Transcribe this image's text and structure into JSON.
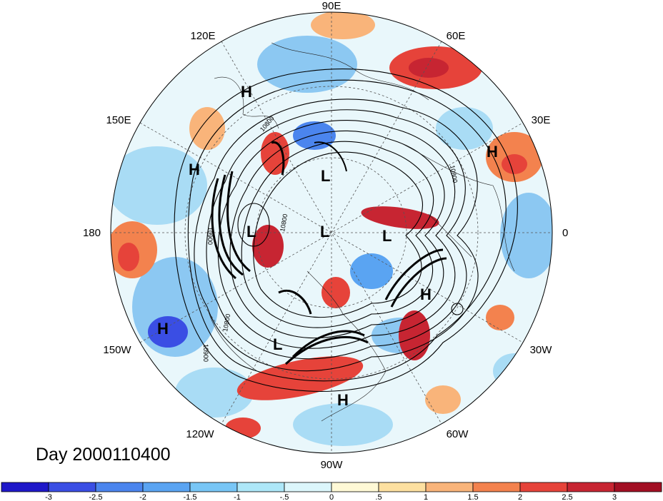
{
  "map": {
    "projection": "north-polar-stereographic",
    "longitude_labels": [
      {
        "text": "90E"
      },
      {
        "text": "60E"
      },
      {
        "text": "30E"
      },
      {
        "text": "0"
      },
      {
        "text": "30W"
      },
      {
        "text": "60W"
      },
      {
        "text": "90W"
      },
      {
        "text": "120W"
      },
      {
        "text": "150W"
      },
      {
        "text": "180"
      },
      {
        "text": "150E"
      },
      {
        "text": "120E"
      }
    ],
    "pressure_centers": [
      {
        "type": "H",
        "text": "H"
      },
      {
        "type": "H",
        "text": "H"
      },
      {
        "type": "L",
        "text": "L"
      },
      {
        "type": "H",
        "text": "H"
      },
      {
        "type": "L",
        "text": "L"
      },
      {
        "type": "L",
        "text": "L"
      },
      {
        "type": "L",
        "text": "L"
      },
      {
        "type": "H",
        "text": "H"
      },
      {
        "type": "H",
        "text": "H"
      },
      {
        "type": "L",
        "text": "L"
      },
      {
        "type": "H",
        "text": "H"
      }
    ],
    "contour_labels": [
      "10800",
      "10800",
      "10900",
      "10800",
      "10800",
      "10900"
    ],
    "date_label": "Day 2000110400"
  },
  "colorbar": {
    "colors": [
      "#1f18c9",
      "#3a4ee4",
      "#4b85ee",
      "#5aa4f2",
      "#78c6f6",
      "#ade7f8",
      "#dcf6fb",
      "#fff9d6",
      "#fde0a0",
      "#f9b47a",
      "#f3824e",
      "#e6433a",
      "#c72532",
      "#a20f23"
    ],
    "tick_labels": [
      "-3",
      "-2.5",
      "-2",
      "-1.5",
      "-1",
      "-.5",
      "0",
      ".5",
      "1",
      "1.5",
      "2",
      "2.5",
      "3"
    ]
  }
}
